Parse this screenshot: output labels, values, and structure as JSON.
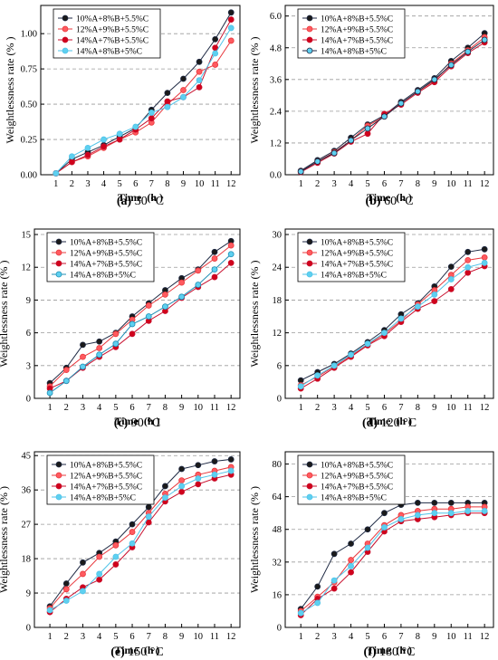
{
  "figure": {
    "chart_data": [
      {
        "id": "a",
        "type": "line",
        "caption_letter": "(a)",
        "caption_text": " 30 °C",
        "xlabel": "Time  (h )",
        "ylabel": "Weightlessness rate (% )",
        "x": [
          1,
          2,
          3,
          4,
          5,
          6,
          7,
          8,
          9,
          10,
          11,
          12
        ],
        "ylim": [
          0,
          1.2
        ],
        "yticks": [
          0.0,
          0.25,
          0.5,
          0.75,
          1.0
        ],
        "ytick_labels": [
          "0.00",
          "0.25",
          "0.50",
          "0.75",
          "1.00"
        ],
        "series": [
          {
            "name": "10%A+8%B+5.5%C",
            "color": "#1f2a44",
            "values": [
              0.01,
              0.11,
              0.16,
              0.21,
              0.27,
              0.33,
              0.46,
              0.58,
              0.68,
              0.8,
              0.96,
              1.15
            ]
          },
          {
            "name": "12%A+9%B+5.5%C",
            "color": "#e8383d",
            "values": [
              0.01,
              0.09,
              0.13,
              0.19,
              0.25,
              0.3,
              0.37,
              0.5,
              0.6,
              0.73,
              0.78,
              0.95
            ]
          },
          {
            "name": "14%A+7%B+5.5%C",
            "color": "#c8102e",
            "values": [
              0.01,
              0.09,
              0.14,
              0.2,
              0.25,
              0.32,
              0.4,
              0.52,
              0.55,
              0.62,
              0.9,
              1.1
            ]
          },
          {
            "name": "14%A+8%B+5%C",
            "color": "#4fc3e8",
            "values": [
              0.01,
              0.13,
              0.19,
              0.25,
              0.29,
              0.34,
              0.44,
              0.48,
              0.55,
              0.67,
              0.86,
              1.04
            ]
          }
        ]
      },
      {
        "id": "b",
        "type": "line",
        "caption_letter": "(b)",
        "caption_text": " 60 °C",
        "xlabel": "Time  (h )",
        "ylabel": "Weightlessness rate (% )",
        "x": [
          1,
          2,
          3,
          4,
          5,
          6,
          7,
          8,
          9,
          10,
          11,
          12
        ],
        "ylim": [
          0,
          6.4
        ],
        "yticks": [
          0,
          1.2,
          2.4,
          3.6,
          4.8,
          6.0
        ],
        "ytick_labels": [
          "0.0",
          "1.2",
          "2.4",
          "3.6",
          "4.8",
          "6.0"
        ],
        "series": [
          {
            "name": "10%A+8%B+5.5%C",
            "color": "#1f2a44",
            "values": [
              0.15,
              0.55,
              0.9,
              1.4,
              1.9,
              2.25,
              2.75,
              3.2,
              3.65,
              4.3,
              4.8,
              5.35
            ]
          },
          {
            "name": "12%A+9%B+5.5%C",
            "color": "#e8383d",
            "values": [
              0.12,
              0.5,
              0.85,
              1.3,
              1.85,
              2.2,
              2.7,
              3.15,
              3.55,
              4.2,
              4.7,
              5.2
            ]
          },
          {
            "name": "14%A+7%B+5.5%C",
            "color": "#c8102e",
            "values": [
              0.1,
              0.45,
              0.8,
              1.25,
              1.55,
              2.3,
              2.65,
              3.1,
              3.5,
              4.1,
              4.6,
              5.0
            ]
          },
          {
            "name": "14%A+8%B+5%C",
            "color": "#1f2a44",
            "values": [
              0.12,
              0.5,
              0.82,
              1.3,
              1.75,
              2.2,
              2.7,
              3.15,
              3.6,
              4.15,
              4.65,
              5.1
            ]
          }
        ]
      },
      {
        "id": "c",
        "type": "line",
        "caption_letter": "(c)",
        "caption_text": " 90 °C",
        "xlabel": "Time  (h )",
        "ylabel": "Weightlessness rate (% )",
        "x": [
          1,
          2,
          3,
          4,
          5,
          6,
          7,
          8,
          9,
          10,
          11,
          12
        ],
        "ylim": [
          0,
          15.5
        ],
        "yticks": [
          0,
          3,
          6,
          9,
          12,
          15
        ],
        "ytick_labels": [
          "0",
          "3",
          "6",
          "9",
          "12",
          "15"
        ],
        "series": [
          {
            "name": "10%A+8%B+5.5%C",
            "color": "#1f2a44",
            "values": [
              1.4,
              2.8,
              4.9,
              5.2,
              6.0,
              7.5,
              8.7,
              9.9,
              11.0,
              11.8,
              13.4,
              14.4
            ]
          },
          {
            "name": "12%A+9%B+5.5%C",
            "color": "#e8383d",
            "values": [
              1.1,
              2.6,
              3.8,
              4.6,
              5.9,
              7.2,
              8.5,
              9.5,
              10.6,
              11.7,
              12.8,
              14.0
            ]
          },
          {
            "name": "14%A+7%B+5.5%C",
            "color": "#c8102e",
            "values": [
              0.9,
              1.6,
              2.8,
              3.8,
              4.7,
              5.9,
              7.1,
              8.0,
              9.2,
              10.2,
              11.1,
              12.4
            ]
          },
          {
            "name": "14%A+8%B+5%C",
            "color": "#1f8fb5",
            "values": [
              0.5,
              1.6,
              2.9,
              4.0,
              5.0,
              6.8,
              7.5,
              8.4,
              9.3,
              10.4,
              11.8,
              13.2
            ]
          }
        ]
      },
      {
        "id": "d",
        "type": "line",
        "caption_letter": "(d)",
        "caption_text": " 120 °C",
        "xlabel": "Time  (h )",
        "ylabel": "Weightlessness rate (% )",
        "x": [
          1,
          2,
          3,
          4,
          5,
          6,
          7,
          8,
          9,
          10,
          11,
          12
        ],
        "ylim": [
          0,
          31
        ],
        "yticks": [
          0,
          6,
          12,
          18,
          24,
          30
        ],
        "ytick_labels": [
          "0",
          "6",
          "12",
          "18",
          "24",
          "30"
        ],
        "series": [
          {
            "name": "10%A+8%B+5.5%C",
            "color": "#1f2a44",
            "values": [
              3.3,
              4.8,
              6.3,
              8.2,
              10.3,
              12.5,
              15.4,
              17.4,
              20.5,
              24.1,
              26.8,
              27.3
            ]
          },
          {
            "name": "12%A+9%B+5.5%C",
            "color": "#e8383d",
            "values": [
              2.4,
              4.0,
              5.8,
              7.8,
              9.8,
              11.8,
              14.2,
              17.2,
              19.8,
              22.6,
              25.3,
              25.8
            ]
          },
          {
            "name": "14%A+7%B+5.5%C",
            "color": "#c8102e",
            "values": [
              1.8,
              3.6,
              5.6,
              7.6,
              9.7,
              11.4,
              14.0,
              16.4,
              17.8,
              20.0,
              23.0,
              24.2
            ]
          },
          {
            "name": "14%A+8%B+5%C",
            "color": "#4fc3e8",
            "values": [
              2.2,
              4.2,
              6.0,
              8.0,
              10.0,
              12.0,
              14.6,
              16.8,
              19.0,
              21.8,
              24.0,
              24.8
            ]
          }
        ]
      },
      {
        "id": "e",
        "type": "line",
        "caption_letter": "(e)",
        "caption_text": " 150 °C",
        "xlabel": "Time  (h )",
        "ylabel": "Weightlessness rate (% )",
        "x": [
          1,
          2,
          3,
          4,
          5,
          6,
          7,
          8,
          9,
          10,
          11,
          12
        ],
        "ylim": [
          0,
          46
        ],
        "yticks": [
          0,
          9,
          18,
          27,
          36,
          45
        ],
        "ytick_labels": [
          "0",
          "9",
          "18",
          "27",
          "36",
          "45"
        ],
        "series": [
          {
            "name": "10%A+8%B+5.5%C",
            "color": "#1f2a44",
            "values": [
              5.5,
              11.5,
              17.0,
              19.5,
              22.5,
              27.0,
              31.5,
              37.0,
              41.5,
              42.5,
              43.5,
              44.0
            ]
          },
          {
            "name": "12%A+9%B+5.5%C",
            "color": "#e8383d",
            "values": [
              5.0,
              10.0,
              14.0,
              18.5,
              21.5,
              25.0,
              30.0,
              35.0,
              38.5,
              40.0,
              41.0,
              42.0
            ]
          },
          {
            "name": "14%A+7%B+5.5%C",
            "color": "#c8102e",
            "values": [
              4.0,
              7.5,
              10.5,
              12.5,
              16.5,
              21.0,
              27.5,
              33.0,
              35.5,
              37.5,
              39.0,
              40.0
            ]
          },
          {
            "name": "14%A+8%B+5%C",
            "color": "#4fc3e8",
            "values": [
              4.5,
              7.0,
              9.5,
              14.0,
              18.5,
              22.0,
              29.0,
              34.0,
              37.0,
              39.0,
              40.0,
              41.0
            ]
          }
        ]
      },
      {
        "id": "f",
        "type": "line",
        "caption_letter": "(f)",
        "caption_text": " 180 °C",
        "xlabel": "Time  (h )",
        "ylabel": "Weightlessness rate (% )",
        "x": [
          1,
          2,
          3,
          4,
          5,
          6,
          7,
          8,
          9,
          10,
          11,
          12
        ],
        "ylim": [
          0,
          86
        ],
        "yticks": [
          0,
          16,
          32,
          48,
          64,
          80
        ],
        "ytick_labels": [
          "0",
          "16",
          "32",
          "48",
          "64",
          "80"
        ],
        "series": [
          {
            "name": "10%A+8%B+5.5%C",
            "color": "#1f2a44",
            "values": [
              9,
              20,
              36,
              41,
              48,
              56,
              60,
              61,
              61,
              61,
              61,
              61
            ]
          },
          {
            "name": "12%A+9%B+5.5%C",
            "color": "#e8383d",
            "values": [
              8,
              15,
              22,
              33,
              41,
              50,
              55,
              57,
              58,
              58,
              59,
              59
            ]
          },
          {
            "name": "14%A+7%B+5.5%C",
            "color": "#c8102e",
            "values": [
              6,
              14,
              19,
              27,
              37,
              47,
              52,
              53,
              54,
              55,
              56,
              56
            ]
          },
          {
            "name": "14%A+8%B+5%C",
            "color": "#4fc3e8",
            "values": [
              7,
              12,
              23,
              30,
              39,
              49,
              53,
              55,
              56,
              56,
              57,
              57
            ]
          }
        ]
      }
    ]
  }
}
